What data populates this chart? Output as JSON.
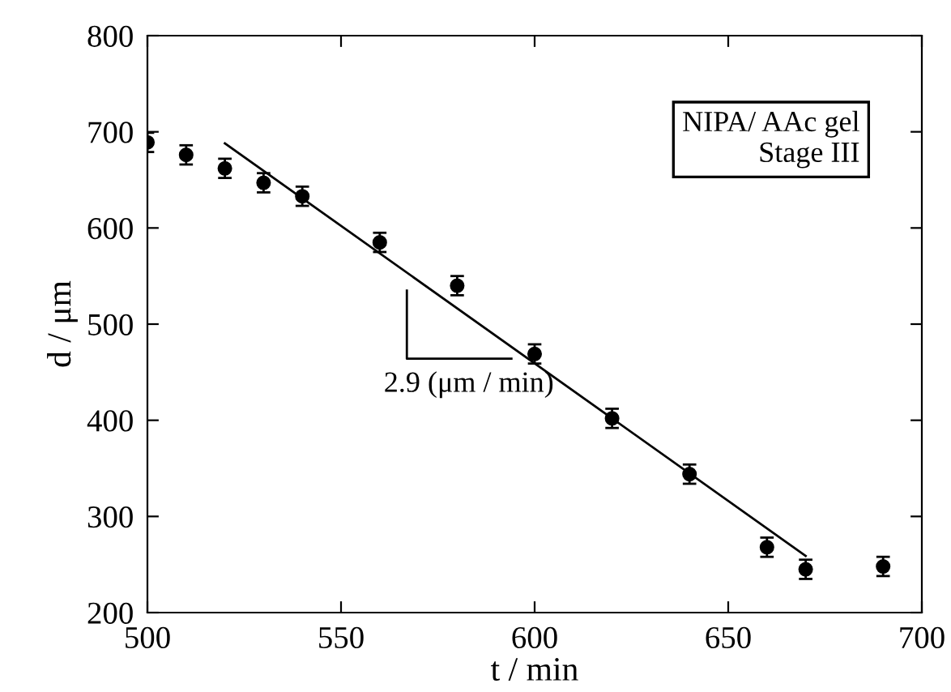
{
  "chart_data": {
    "type": "scatter",
    "xlabel": "t / min",
    "ylabel": "d / μm",
    "xlim": [
      500,
      700
    ],
    "ylim": [
      200,
      800
    ],
    "xticks": [
      500,
      550,
      600,
      650,
      700
    ],
    "yticks": [
      200,
      300,
      400,
      500,
      600,
      700,
      800
    ],
    "grid": false,
    "legend": false,
    "series": [
      {
        "marker": "circle",
        "color": "#000000",
        "x": [
          500,
          510,
          520,
          530,
          540,
          560,
          580,
          600,
          620,
          640,
          660,
          670,
          690
        ],
        "values": [
          689,
          676,
          662,
          647,
          633,
          585,
          540,
          469,
          402,
          344,
          268,
          245,
          248
        ],
        "errors": [
          10,
          10,
          10,
          10,
          10,
          10,
          10,
          10,
          10,
          10,
          10,
          10,
          10
        ]
      },
      {
        "type": "line",
        "color": "#000000",
        "x": [
          520,
          670
        ],
        "values": [
          688,
          259
        ],
        "line_style": "solid"
      }
    ],
    "annotations": [
      "2.9 (μm / min)",
      "NIPA/ AAc gel\nStage III"
    ]
  }
}
